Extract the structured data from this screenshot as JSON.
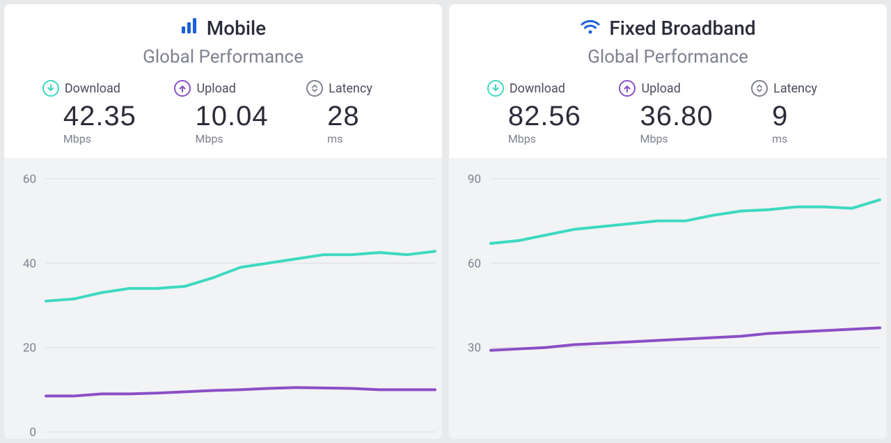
{
  "colors": {
    "background_page": "#e8e9eb",
    "background_panel": "#ffffff",
    "background_chart": "#f2f3f5",
    "text_dark": "#2b2c3a",
    "text_muted": "#7e818f",
    "grid": "#d9dbe0",
    "download": "#3dd9c1",
    "upload": "#8a4fc7",
    "latency": "#7e818f",
    "icon_blue": "#1c5fd6"
  },
  "panels": [
    {
      "id": "mobile",
      "title": "Mobile",
      "icon": "bars",
      "subtitle": "Global Performance",
      "metrics": {
        "download": {
          "label": "Download",
          "value": "42.35",
          "unit": "Mbps"
        },
        "upload": {
          "label": "Upload",
          "value": "10.04",
          "unit": "Mbps"
        },
        "latency": {
          "label": "Latency",
          "value": "28",
          "unit": "ms"
        }
      },
      "chart": {
        "type": "line",
        "ylim": [
          0,
          60
        ],
        "yticks": [
          0,
          20,
          40,
          60
        ],
        "grid_color": "#d9dbe0",
        "background_color": "#f2f3f5",
        "line_width": 4,
        "series": [
          {
            "name": "download",
            "color": "#3dd9c1",
            "values": [
              31,
              31.5,
              33,
              34,
              34,
              34.5,
              36.5,
              39,
              40,
              41,
              42,
              42,
              42.5,
              42,
              42.8
            ]
          },
          {
            "name": "upload",
            "color": "#8a4fc7",
            "values": [
              8.5,
              8.5,
              9,
              9,
              9.2,
              9.5,
              9.8,
              10,
              10.3,
              10.5,
              10.4,
              10.3,
              10,
              10,
              10
            ]
          }
        ]
      }
    },
    {
      "id": "fixed",
      "title": "Fixed Broadband",
      "icon": "wifi",
      "subtitle": "Global Performance",
      "metrics": {
        "download": {
          "label": "Download",
          "value": "82.56",
          "unit": "Mbps"
        },
        "upload": {
          "label": "Upload",
          "value": "36.80",
          "unit": "Mbps"
        },
        "latency": {
          "label": "Latency",
          "value": "9",
          "unit": "ms"
        }
      },
      "chart": {
        "type": "line",
        "ylim": [
          0,
          90
        ],
        "yticks": [
          30,
          60,
          90
        ],
        "grid_color": "#d9dbe0",
        "background_color": "#f2f3f5",
        "line_width": 4,
        "series": [
          {
            "name": "download",
            "color": "#3dd9c1",
            "values": [
              67,
              68,
              70,
              72,
              73,
              74,
              75,
              75,
              77,
              78.5,
              79,
              80,
              80,
              79.5,
              82.5
            ]
          },
          {
            "name": "upload",
            "color": "#8a4fc7",
            "values": [
              29,
              29.5,
              30,
              31,
              31.5,
              32,
              32.5,
              33,
              33.5,
              34,
              35,
              35.5,
              36,
              36.5,
              37
            ]
          }
        ]
      }
    }
  ]
}
